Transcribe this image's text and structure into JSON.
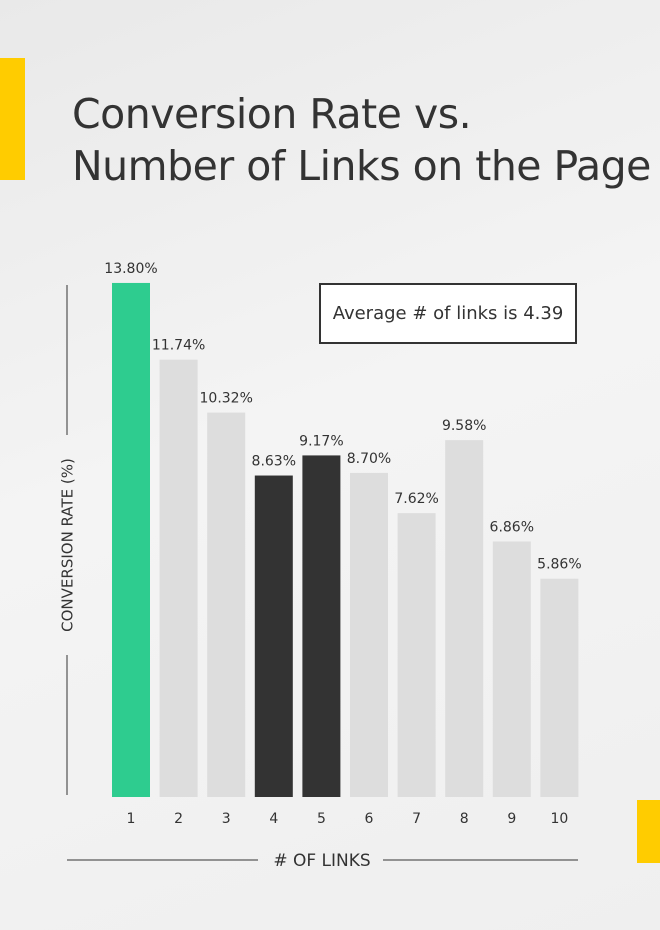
{
  "chart_data": {
    "type": "bar",
    "title": "Conversion Rate vs.\nNumber of Links on the Page",
    "y_label": "CONVERSION RATE (%)",
    "x_label": "# OF LINKS",
    "annotation": "Average # of links is 4.39",
    "categories": [
      "1",
      "2",
      "3",
      "4",
      "5",
      "6",
      "7",
      "8",
      "9",
      "10"
    ],
    "values": [
      13.8,
      11.74,
      10.32,
      8.63,
      9.17,
      8.7,
      7.62,
      9.58,
      6.86,
      5.86
    ],
    "value_labels": [
      "13.80%",
      "11.74%",
      "10.32%",
      "8.63%",
      "9.17%",
      "8.70%",
      "7.62%",
      "9.58%",
      "6.86%",
      "5.86%"
    ],
    "colors": [
      "#2ecc8f",
      "#dddddd",
      "#dddddd",
      "#333333",
      "#333333",
      "#dddddd",
      "#dddddd",
      "#dddddd",
      "#dddddd",
      "#dddddd"
    ],
    "ylim": [
      0,
      14
    ]
  }
}
